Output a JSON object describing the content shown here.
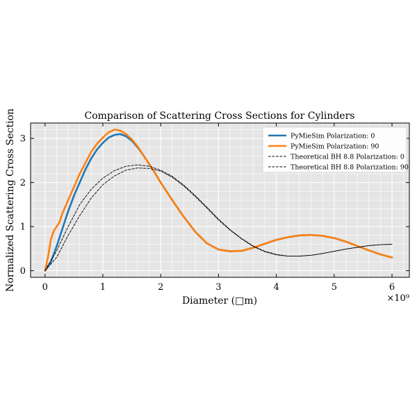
{
  "chart_data": {
    "type": "line",
    "title": "Comparison of Scattering Cross Sections for Cylinders",
    "xlabel": "Diameter (□m)",
    "ylabel": "Normalized Scattering Cross Section",
    "x_multiplier": "×10⁹",
    "xlim": [
      -0.25,
      6.3
    ],
    "ylim": [
      -0.15,
      3.35
    ],
    "x_ticks": [
      0,
      1,
      2,
      3,
      4,
      5,
      6
    ],
    "y_ticks": [
      0,
      1,
      2,
      3
    ],
    "grid": true,
    "legend_position": "top-right",
    "series": [
      {
        "name": "PyMieSim Polarization: 0",
        "color": "#1f77b4",
        "style": "solid",
        "x": [
          0,
          0.1,
          0.2,
          0.3,
          0.4,
          0.5,
          0.6,
          0.7,
          0.8,
          0.9,
          1.0,
          1.1,
          1.2,
          1.3,
          1.4,
          1.5,
          1.6,
          1.7,
          1.8,
          1.9,
          2.0,
          2.2,
          2.4,
          2.6,
          2.8,
          3.0,
          3.2,
          3.4,
          3.6,
          3.8,
          4.0,
          4.2,
          4.4,
          4.6,
          4.8,
          5.0,
          5.2,
          5.4,
          5.6,
          5.8,
          6.0
        ],
        "values": [
          0,
          0.2,
          0.55,
          0.95,
          1.35,
          1.7,
          2.0,
          2.3,
          2.55,
          2.75,
          2.9,
          3.02,
          3.08,
          3.1,
          3.05,
          2.95,
          2.8,
          2.62,
          2.42,
          2.22,
          2.0,
          1.6,
          1.22,
          0.88,
          0.62,
          0.48,
          0.44,
          0.45,
          0.52,
          0.61,
          0.7,
          0.76,
          0.8,
          0.81,
          0.79,
          0.74,
          0.66,
          0.56,
          0.46,
          0.37,
          0.3
        ]
      },
      {
        "name": "PyMieSim Polarization: 90",
        "color": "#ff7f0e",
        "style": "solid",
        "x": [
          0,
          0.05,
          0.1,
          0.15,
          0.2,
          0.25,
          0.3,
          0.4,
          0.5,
          0.6,
          0.7,
          0.8,
          0.9,
          1.0,
          1.1,
          1.2,
          1.3,
          1.4,
          1.5,
          1.6,
          1.7,
          1.8,
          1.9,
          2.0,
          2.2,
          2.4,
          2.6,
          2.8,
          3.0,
          3.2,
          3.4,
          3.6,
          3.8,
          4.0,
          4.2,
          4.4,
          4.6,
          4.8,
          5.0,
          5.2,
          5.4,
          5.6,
          5.8,
          6.0
        ],
        "values": [
          0,
          0.3,
          0.7,
          0.9,
          1.0,
          1.1,
          1.3,
          1.6,
          1.9,
          2.2,
          2.45,
          2.7,
          2.88,
          3.02,
          3.14,
          3.2,
          3.18,
          3.1,
          2.98,
          2.82,
          2.62,
          2.42,
          2.22,
          2.0,
          1.6,
          1.22,
          0.88,
          0.62,
          0.48,
          0.44,
          0.45,
          0.52,
          0.61,
          0.7,
          0.76,
          0.8,
          0.81,
          0.79,
          0.74,
          0.66,
          0.56,
          0.46,
          0.37,
          0.3
        ]
      },
      {
        "name": "Theoretical BH 8.8 Polarization: 0",
        "color": "#000000",
        "style": "dashed",
        "x": [
          0,
          0.2,
          0.4,
          0.6,
          0.8,
          1.0,
          1.2,
          1.4,
          1.6,
          1.8,
          2.0,
          2.2,
          2.4,
          2.6,
          2.8,
          3.0,
          3.2,
          3.4,
          3.6,
          3.8,
          4.0,
          4.2,
          4.4,
          4.6,
          4.8,
          5.0,
          5.2,
          5.4,
          5.6,
          5.8,
          6.0
        ],
        "values": [
          0,
          0.3,
          0.8,
          1.25,
          1.65,
          1.95,
          2.15,
          2.28,
          2.33,
          2.32,
          2.26,
          2.12,
          1.92,
          1.68,
          1.42,
          1.15,
          0.92,
          0.72,
          0.55,
          0.43,
          0.36,
          0.33,
          0.33,
          0.35,
          0.39,
          0.44,
          0.49,
          0.53,
          0.57,
          0.59,
          0.6
        ]
      },
      {
        "name": "Theoretical BH 8.8 Polarization: 90",
        "color": "#000000",
        "style": "dashed",
        "x": [
          0,
          0.2,
          0.4,
          0.6,
          0.8,
          1.0,
          1.2,
          1.4,
          1.6,
          1.8,
          2.0,
          2.2,
          2.4,
          2.6,
          2.8,
          3.0,
          3.2,
          3.4,
          3.6,
          3.8,
          4.0,
          4.2,
          4.4,
          4.6,
          4.8,
          5.0,
          5.2,
          5.4,
          5.6,
          5.8,
          6.0
        ],
        "values": [
          0,
          0.45,
          1.0,
          1.5,
          1.85,
          2.1,
          2.27,
          2.37,
          2.4,
          2.37,
          2.28,
          2.14,
          1.94,
          1.7,
          1.44,
          1.17,
          0.93,
          0.73,
          0.56,
          0.44,
          0.37,
          0.33,
          0.33,
          0.35,
          0.39,
          0.44,
          0.49,
          0.53,
          0.57,
          0.59,
          0.6
        ]
      }
    ]
  }
}
